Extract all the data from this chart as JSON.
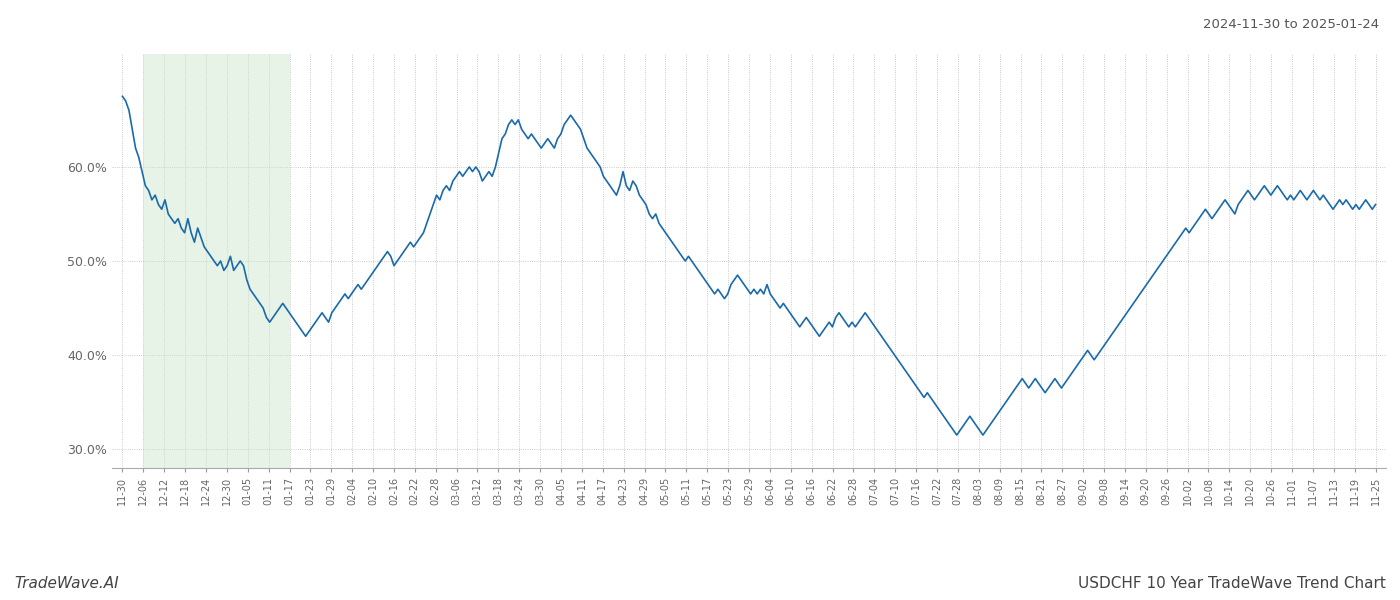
{
  "title_top_right": "2024-11-30 to 2025-01-24",
  "footer_left": "TradeWave.AI",
  "footer_right": "USDCHF 10 Year TradeWave Trend Chart",
  "line_color": "#1a6aab",
  "line_width": 1.2,
  "shade_color": "#c8e6c9",
  "shade_alpha": 0.45,
  "background_color": "#ffffff",
  "grid_color": "#bbbbbb",
  "ylim": [
    28.0,
    72.0
  ],
  "yticks": [
    30.0,
    40.0,
    50.0,
    60.0
  ],
  "x_labels": [
    "11-30",
    "12-06",
    "12-12",
    "12-18",
    "12-24",
    "12-30",
    "01-05",
    "01-11",
    "01-17",
    "01-23",
    "01-29",
    "02-04",
    "02-10",
    "02-16",
    "02-22",
    "02-28",
    "03-06",
    "03-12",
    "03-18",
    "03-24",
    "03-30",
    "04-05",
    "04-11",
    "04-17",
    "04-23",
    "04-29",
    "05-05",
    "05-11",
    "05-17",
    "05-23",
    "05-29",
    "06-04",
    "06-10",
    "06-16",
    "06-22",
    "06-28",
    "07-04",
    "07-10",
    "07-16",
    "07-22",
    "07-28",
    "08-03",
    "08-09",
    "08-15",
    "08-21",
    "08-27",
    "09-02",
    "09-08",
    "09-14",
    "09-20",
    "09-26",
    "10-02",
    "10-08",
    "10-14",
    "10-20",
    "10-26",
    "11-01",
    "11-07",
    "11-13",
    "11-19",
    "11-25"
  ],
  "shade_start_label": "12-06",
  "shade_end_label": "01-17",
  "values": [
    67.5,
    67.0,
    66.0,
    64.0,
    62.0,
    61.0,
    59.5,
    58.0,
    57.5,
    56.5,
    57.0,
    56.0,
    55.5,
    56.5,
    55.0,
    54.5,
    54.0,
    54.5,
    53.5,
    53.0,
    54.5,
    53.0,
    52.0,
    53.5,
    52.5,
    51.5,
    51.0,
    50.5,
    50.0,
    49.5,
    50.0,
    49.0,
    49.5,
    50.5,
    49.0,
    49.5,
    50.0,
    49.5,
    48.0,
    47.0,
    46.5,
    46.0,
    45.5,
    45.0,
    44.0,
    43.5,
    44.0,
    44.5,
    45.0,
    45.5,
    45.0,
    44.5,
    44.0,
    43.5,
    43.0,
    42.5,
    42.0,
    42.5,
    43.0,
    43.5,
    44.0,
    44.5,
    44.0,
    43.5,
    44.5,
    45.0,
    45.5,
    46.0,
    46.5,
    46.0,
    46.5,
    47.0,
    47.5,
    47.0,
    47.5,
    48.0,
    48.5,
    49.0,
    49.5,
    50.0,
    50.5,
    51.0,
    50.5,
    49.5,
    50.0,
    50.5,
    51.0,
    51.5,
    52.0,
    51.5,
    52.0,
    52.5,
    53.0,
    54.0,
    55.0,
    56.0,
    57.0,
    56.5,
    57.5,
    58.0,
    57.5,
    58.5,
    59.0,
    59.5,
    59.0,
    59.5,
    60.0,
    59.5,
    60.0,
    59.5,
    58.5,
    59.0,
    59.5,
    59.0,
    60.0,
    61.5,
    63.0,
    63.5,
    64.5,
    65.0,
    64.5,
    65.0,
    64.0,
    63.5,
    63.0,
    63.5,
    63.0,
    62.5,
    62.0,
    62.5,
    63.0,
    62.5,
    62.0,
    63.0,
    63.5,
    64.5,
    65.0,
    65.5,
    65.0,
    64.5,
    64.0,
    63.0,
    62.0,
    61.5,
    61.0,
    60.5,
    60.0,
    59.0,
    58.5,
    58.0,
    57.5,
    57.0,
    58.0,
    59.5,
    58.0,
    57.5,
    58.5,
    58.0,
    57.0,
    56.5,
    56.0,
    55.0,
    54.5,
    55.0,
    54.0,
    53.5,
    53.0,
    52.5,
    52.0,
    51.5,
    51.0,
    50.5,
    50.0,
    50.5,
    50.0,
    49.5,
    49.0,
    48.5,
    48.0,
    47.5,
    47.0,
    46.5,
    47.0,
    46.5,
    46.0,
    46.5,
    47.5,
    48.0,
    48.5,
    48.0,
    47.5,
    47.0,
    46.5,
    47.0,
    46.5,
    47.0,
    46.5,
    47.5,
    46.5,
    46.0,
    45.5,
    45.0,
    45.5,
    45.0,
    44.5,
    44.0,
    43.5,
    43.0,
    43.5,
    44.0,
    43.5,
    43.0,
    42.5,
    42.0,
    42.5,
    43.0,
    43.5,
    43.0,
    44.0,
    44.5,
    44.0,
    43.5,
    43.0,
    43.5,
    43.0,
    43.5,
    44.0,
    44.5,
    44.0,
    43.5,
    43.0,
    42.5,
    42.0,
    41.5,
    41.0,
    40.5,
    40.0,
    39.5,
    39.0,
    38.5,
    38.0,
    37.5,
    37.0,
    36.5,
    36.0,
    35.5,
    36.0,
    35.5,
    35.0,
    34.5,
    34.0,
    33.5,
    33.0,
    32.5,
    32.0,
    31.5,
    32.0,
    32.5,
    33.0,
    33.5,
    33.0,
    32.5,
    32.0,
    31.5,
    32.0,
    32.5,
    33.0,
    33.5,
    34.0,
    34.5,
    35.0,
    35.5,
    36.0,
    36.5,
    37.0,
    37.5,
    37.0,
    36.5,
    37.0,
    37.5,
    37.0,
    36.5,
    36.0,
    36.5,
    37.0,
    37.5,
    37.0,
    36.5,
    37.0,
    37.5,
    38.0,
    38.5,
    39.0,
    39.5,
    40.0,
    40.5,
    40.0,
    39.5,
    40.0,
    40.5,
    41.0,
    41.5,
    42.0,
    42.5,
    43.0,
    43.5,
    44.0,
    44.5,
    45.0,
    45.5,
    46.0,
    46.5,
    47.0,
    47.5,
    48.0,
    48.5,
    49.0,
    49.5,
    50.0,
    50.5,
    51.0,
    51.5,
    52.0,
    52.5,
    53.0,
    53.5,
    53.0,
    53.5,
    54.0,
    54.5,
    55.0,
    55.5,
    55.0,
    54.5,
    55.0,
    55.5,
    56.0,
    56.5,
    56.0,
    55.5,
    55.0,
    56.0,
    56.5,
    57.0,
    57.5,
    57.0,
    56.5,
    57.0,
    57.5,
    58.0,
    57.5,
    57.0,
    57.5,
    58.0,
    57.5,
    57.0,
    56.5,
    57.0,
    56.5,
    57.0,
    57.5,
    57.0,
    56.5,
    57.0,
    57.5,
    57.0,
    56.5,
    57.0,
    56.5,
    56.0,
    55.5,
    56.0,
    56.5,
    56.0,
    56.5,
    56.0,
    55.5,
    56.0,
    55.5,
    56.0,
    56.5,
    56.0,
    55.5,
    56.0
  ]
}
